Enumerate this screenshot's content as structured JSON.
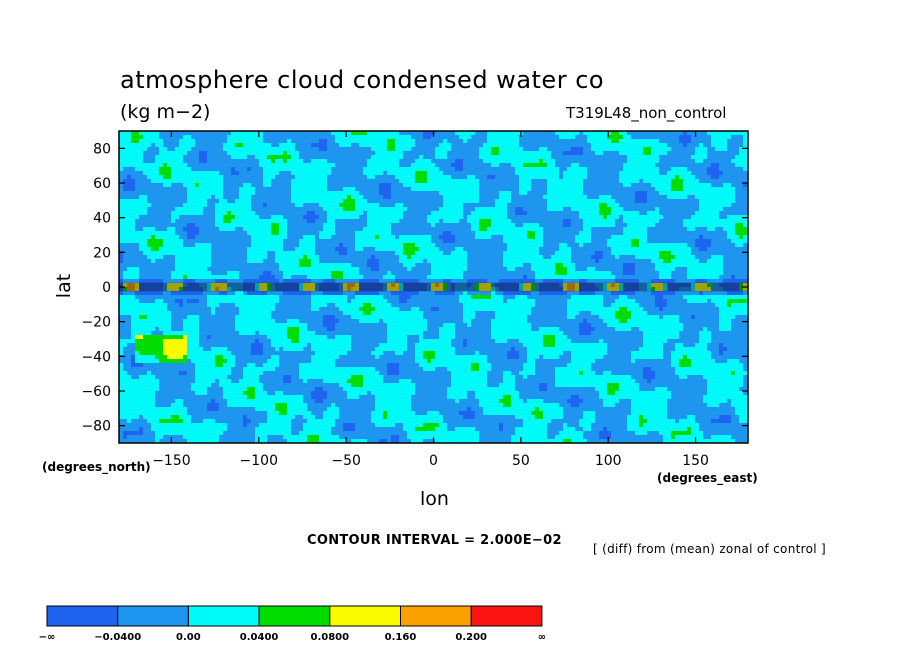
{
  "chart_data": {
    "type": "heatmap",
    "title": "atmosphere cloud condensed water co",
    "units": "(kg m−2)",
    "run_name": "T319L48_non_control",
    "xlabel": "lon",
    "ylabel": "lat",
    "x_units": "(degrees_east)",
    "y_units": "(degrees_north)",
    "xlim": [
      -180,
      180
    ],
    "ylim": [
      -90,
      90
    ],
    "x_ticks": [
      -150,
      -100,
      -50,
      0,
      50,
      100,
      150
    ],
    "y_ticks": [
      80,
      60,
      40,
      20,
      0,
      -20,
      -40,
      -60,
      -80
    ],
    "x_tick_labels": [
      "−150",
      "−100",
      "−50",
      "0",
      "50",
      "100",
      "150"
    ],
    "y_tick_labels": [
      "80",
      "60",
      "40",
      "20",
      "0",
      "−20",
      "−40",
      "−60",
      "−80"
    ],
    "contour_interval": "CONTOUR INTERVAL = 2.000E−02",
    "note": "[ (diff) from (mean) zonal of control ]",
    "colorbar": {
      "levels": [
        "−∞",
        "−0.0400",
        "0.00",
        "0.0400",
        "0.0800",
        "0.160",
        "0.200",
        "∞"
      ],
      "colors": [
        "#1e64f0",
        "#1e96f0",
        "#00fafa",
        "#00dc00",
        "#fafa00",
        "#faa000",
        "#fa1414"
      ]
    }
  }
}
